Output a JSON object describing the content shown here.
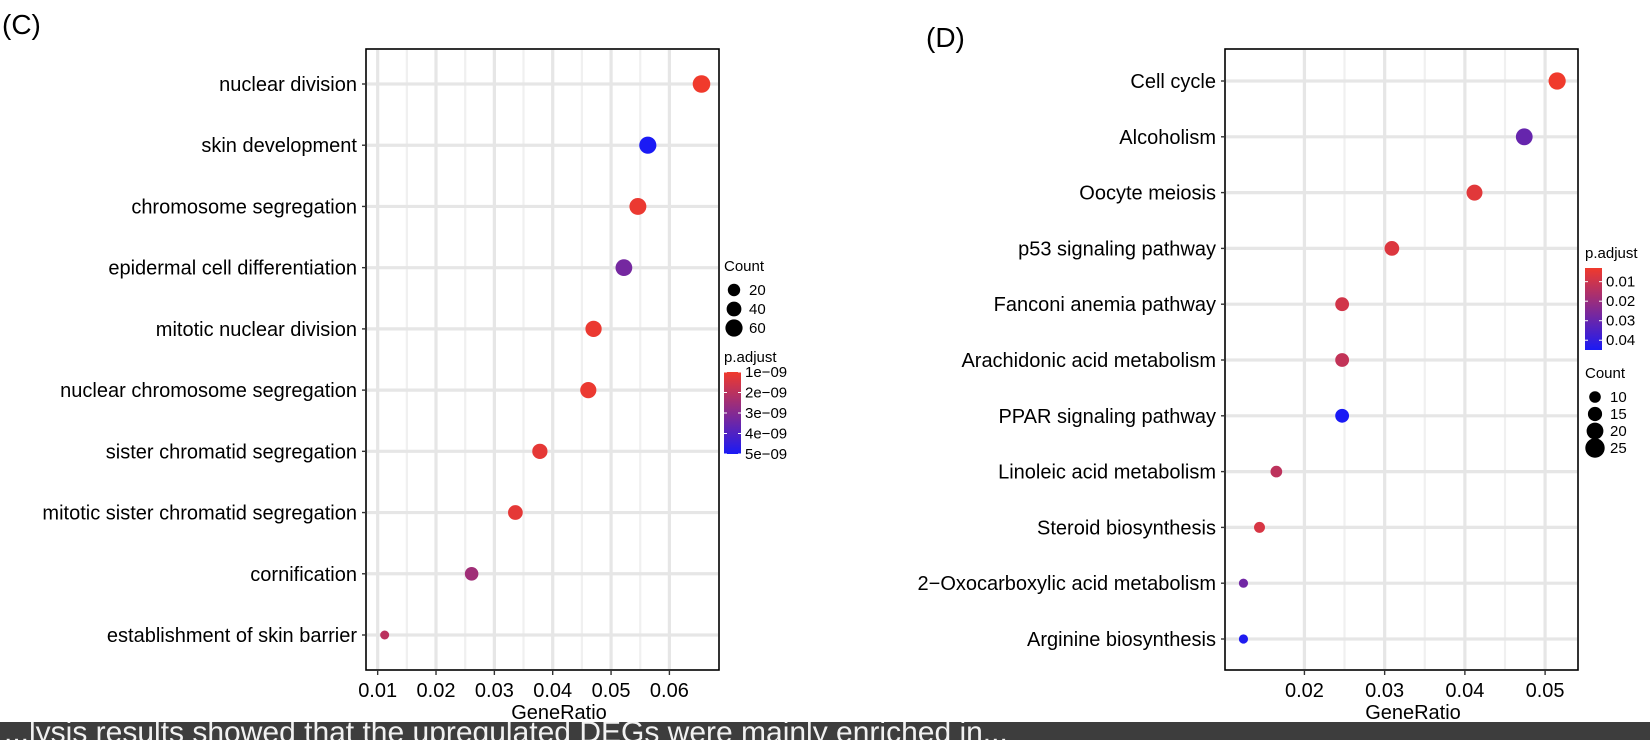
{
  "panels": [
    {
      "label": "(C)",
      "chart_data": {
        "type": "scatter",
        "xlabel": "GeneRatio",
        "ylabel": "",
        "xlim": [
          0.008,
          0.0685
        ],
        "xticks": [
          0.01,
          0.02,
          0.03,
          0.04,
          0.05,
          0.06
        ],
        "tick_labels": [
          "0.01",
          "0.02",
          "0.03",
          "0.04",
          "0.05",
          "0.06"
        ],
        "grid": true,
        "legend_position": "right",
        "terms": [
          {
            "name": "nuclear division",
            "gene_ratio": 0.0655,
            "count": 60,
            "p_adjust": 1e-09
          },
          {
            "name": "skin development",
            "gene_ratio": 0.0563,
            "count": 55,
            "p_adjust": 5e-09
          },
          {
            "name": "chromosome segregation",
            "gene_ratio": 0.0546,
            "count": 53,
            "p_adjust": 1.1e-09
          },
          {
            "name": "epidermal cell differentiation",
            "gene_ratio": 0.0522,
            "count": 51,
            "p_adjust": 3.3e-09
          },
          {
            "name": "mitotic nuclear division",
            "gene_ratio": 0.047,
            "count": 46,
            "p_adjust": 1.1e-09
          },
          {
            "name": "nuclear chromosome segregation",
            "gene_ratio": 0.0461,
            "count": 45,
            "p_adjust": 1.1e-09
          },
          {
            "name": "sister chromatid segregation",
            "gene_ratio": 0.0378,
            "count": 37,
            "p_adjust": 1.2e-09
          },
          {
            "name": "mitotic sister chromatid segregation",
            "gene_ratio": 0.0336,
            "count": 33,
            "p_adjust": 1.2e-09
          },
          {
            "name": "cornification",
            "gene_ratio": 0.0261,
            "count": 25,
            "p_adjust": 2.5e-09
          },
          {
            "name": "establishment of skin barrier",
            "gene_ratio": 0.0112,
            "count": 11,
            "p_adjust": 2e-09
          }
        ],
        "size_legend": {
          "title": "Count",
          "values": [
            20,
            40,
            60
          ],
          "labels": [
            "20",
            "40",
            "60"
          ]
        },
        "color_legend": {
          "title": "p.adjust",
          "range": [
            1e-09,
            5e-09
          ],
          "ticks": [
            1e-09,
            2e-09,
            3e-09,
            4e-09,
            5e-09
          ],
          "labels": [
            "1e−09",
            "2e−09",
            "3e−09",
            "4e−09",
            "5e−09"
          ],
          "low_color": "#f03a2c",
          "high_color": "#1a1af5"
        }
      }
    },
    {
      "label": "(D)",
      "chart_data": {
        "type": "scatter",
        "xlabel": "GeneRatio",
        "ylabel": "",
        "xlim": [
          0.0101,
          0.0541
        ],
        "xticks": [
          0.02,
          0.03,
          0.04,
          0.05
        ],
        "tick_labels": [
          "0.02",
          "0.03",
          "0.04",
          "0.05"
        ],
        "grid": true,
        "legend_position": "right",
        "terms": [
          {
            "name": "Cell cycle",
            "gene_ratio": 0.0515,
            "count": 28,
            "p_adjust": 0.003
          },
          {
            "name": "Alcoholism",
            "gene_ratio": 0.0474,
            "count": 26,
            "p_adjust": 0.03
          },
          {
            "name": "Oocyte meiosis",
            "gene_ratio": 0.0412,
            "count": 22,
            "p_adjust": 0.006
          },
          {
            "name": "p53 signaling pathway",
            "gene_ratio": 0.0309,
            "count": 17,
            "p_adjust": 0.007
          },
          {
            "name": "Fanconi anemia pathway",
            "gene_ratio": 0.0247,
            "count": 14,
            "p_adjust": 0.009
          },
          {
            "name": "Arachidonic acid metabolism",
            "gene_ratio": 0.0247,
            "count": 14,
            "p_adjust": 0.012
          },
          {
            "name": "PPAR signaling pathway",
            "gene_ratio": 0.0247,
            "count": 14,
            "p_adjust": 0.045
          },
          {
            "name": "Linoleic acid metabolism",
            "gene_ratio": 0.0165,
            "count": 9,
            "p_adjust": 0.013
          },
          {
            "name": "Steroid biosynthesis",
            "gene_ratio": 0.0144,
            "count": 8,
            "p_adjust": 0.008
          },
          {
            "name": "2−Oxocarboxylic acid metabolism",
            "gene_ratio": 0.0124,
            "count": 7,
            "p_adjust": 0.028
          },
          {
            "name": "Arginine biosynthesis",
            "gene_ratio": 0.0124,
            "count": 7,
            "p_adjust": 0.044
          }
        ],
        "size_legend": {
          "title": "Count",
          "values": [
            10,
            15,
            20,
            25
          ],
          "labels": [
            "10",
            "15",
            "20",
            "25"
          ]
        },
        "color_legend": {
          "title": "p.adjust",
          "range": [
            0.003,
            0.045
          ],
          "ticks": [
            0.01,
            0.02,
            0.03,
            0.04
          ],
          "labels": [
            "0.01",
            "0.02",
            "0.03",
            "0.04"
          ],
          "low_color": "#f03a2c",
          "high_color": "#1a1af5"
        }
      }
    }
  ],
  "caption_fragment": "...lysis results showed that the upregulated DEGs were mainly enriched in..."
}
